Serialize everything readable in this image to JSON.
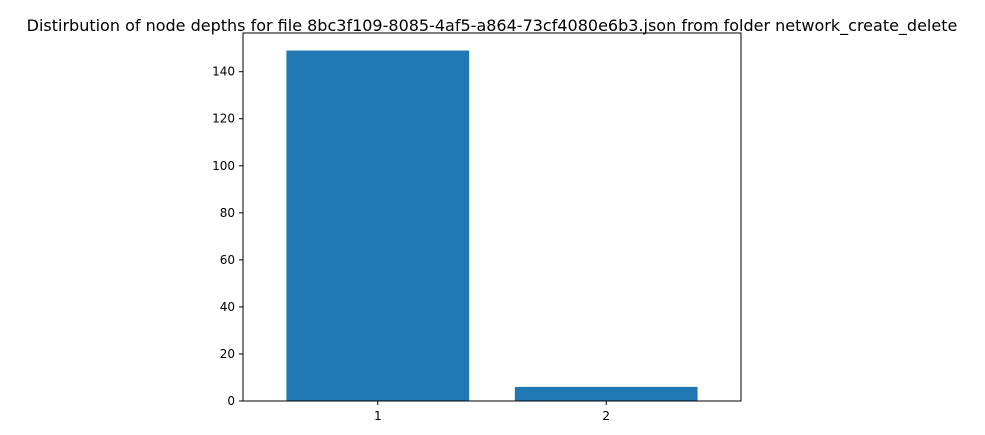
{
  "chart_data": {
    "type": "bar",
    "title": "Distirbution of node depths for file 8bc3f109-8085-4af5-a864-73cf4080e6b3.json from folder network_create_delete",
    "xlabel": "",
    "ylabel": "",
    "categories": [
      "1",
      "2"
    ],
    "values": [
      149,
      6
    ],
    "ylim": [
      0,
      156.45
    ],
    "yticks": [
      0,
      20,
      40,
      60,
      80,
      100,
      120,
      140
    ],
    "grid": false,
    "bar_color": "#1f77b4"
  }
}
